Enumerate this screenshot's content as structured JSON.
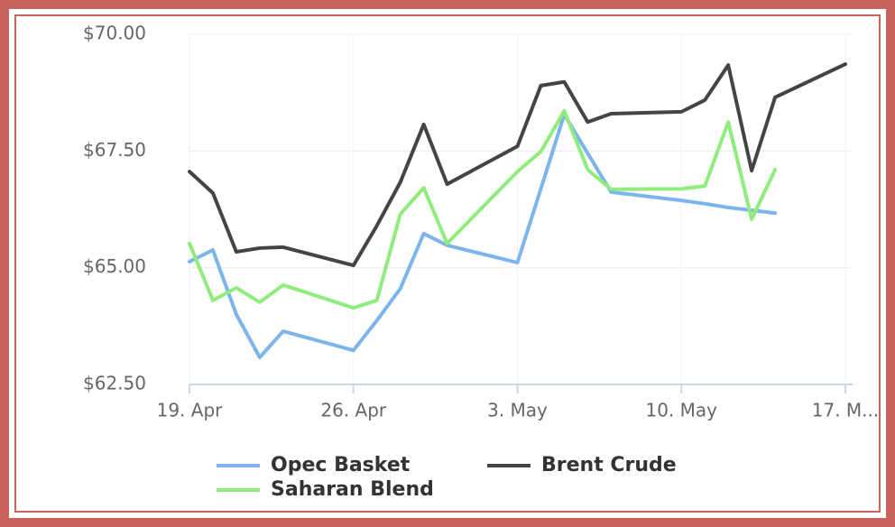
{
  "chart_data": {
    "type": "line",
    "x": [
      "04-19",
      "04-20",
      "04-21",
      "04-22",
      "04-23",
      "04-26",
      "04-27",
      "04-28",
      "04-29",
      "04-30",
      "05-03",
      "05-04",
      "05-05",
      "05-06",
      "05-07",
      "05-10",
      "05-11",
      "05-12",
      "05-13",
      "05-14",
      "05-17"
    ],
    "series": [
      {
        "name": "Opec Basket",
        "color": "#7cb5ec",
        "values": [
          65.13,
          65.38,
          64.0,
          63.08,
          63.64,
          63.23,
          63.87,
          64.55,
          65.73,
          65.48,
          65.11,
          66.69,
          68.28,
          67.45,
          66.62,
          66.44,
          66.37,
          66.29,
          66.23,
          66.17,
          null
        ]
      },
      {
        "name": "Brent Crude",
        "color": "#434348",
        "values": [
          67.06,
          66.6,
          65.34,
          65.42,
          65.44,
          65.05,
          65.9,
          66.83,
          68.07,
          66.79,
          67.6,
          68.9,
          68.98,
          68.12,
          68.3,
          68.34,
          68.59,
          69.34,
          67.08,
          68.65,
          69.36
        ]
      },
      {
        "name": "Saharan Blend",
        "color": "#90ed7d",
        "values": [
          65.52,
          64.3,
          64.57,
          64.26,
          64.63,
          64.14,
          64.3,
          66.15,
          66.71,
          65.52,
          67.06,
          67.49,
          68.36,
          67.1,
          66.68,
          66.69,
          66.75,
          68.12,
          66.04,
          67.1,
          null
        ]
      }
    ],
    "xlim": [
      "04-19",
      "05-17"
    ],
    "xticks": [
      {
        "value": "04-19",
        "label": "19. Apr"
      },
      {
        "value": "04-26",
        "label": "26. Apr"
      },
      {
        "value": "05-03",
        "label": "3. May"
      },
      {
        "value": "05-10",
        "label": "10. May"
      },
      {
        "value": "05-17",
        "label": "17. M..."
      }
    ],
    "ylim": [
      62.5,
      70
    ],
    "yticks": [
      {
        "value": 62.5,
        "label": "$62.50"
      },
      {
        "value": 65,
        "label": "$65.00"
      },
      {
        "value": 67.5,
        "label": "$67.50"
      },
      {
        "value": 70,
        "label": "$70.00"
      }
    ],
    "grid": true
  }
}
